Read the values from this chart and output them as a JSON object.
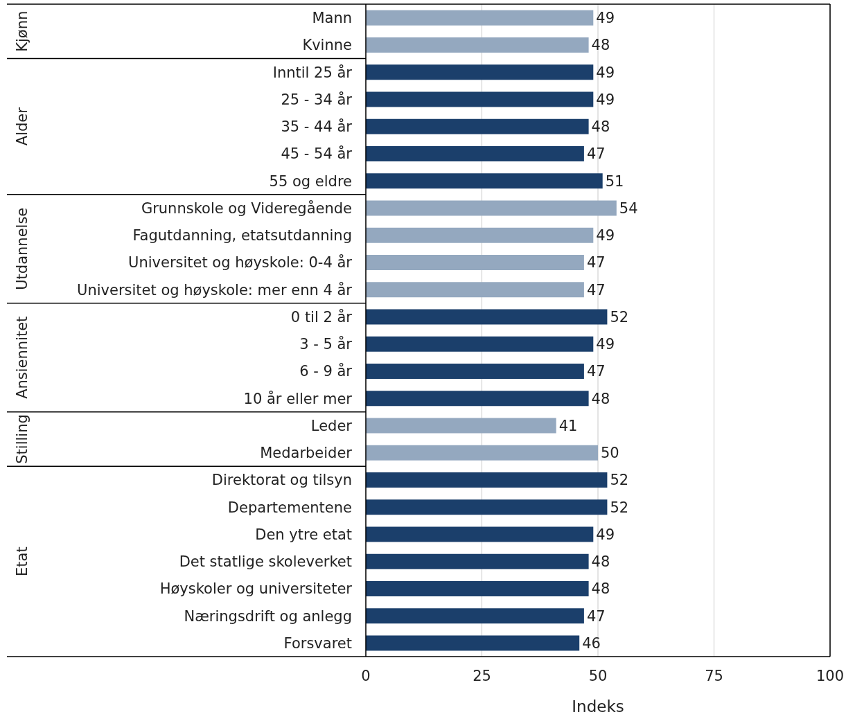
{
  "chart_data": {
    "type": "bar",
    "orientation": "horizontal",
    "xlabel": "Indeks",
    "categories": [
      "Mann",
      "Kvinne",
      "Inntil 25 år",
      "25 - 34 år",
      "35 - 44 år",
      "45 - 54 år",
      "55 og eldre",
      "Grunnskole og Videregående",
      "Fagutdanning, etatsutdanning",
      "Universitet og høyskole: 0-4 år",
      "Universitet og høyskole: mer enn 4 år",
      "0 til 2 år",
      "3 - 5 år",
      "6 - 9 år",
      "10 år eller mer",
      "Leder",
      "Medarbeider",
      "Direktorat og tilsyn",
      "Departementene",
      "Den ytre etat",
      "Det statlige skoleverket",
      "Høyskoler og universiteter",
      "Næringsdrift og anlegg",
      "Forsvaret"
    ],
    "values": [
      49,
      48,
      49,
      49,
      48,
      47,
      51,
      54,
      49,
      47,
      47,
      52,
      49,
      47,
      48,
      41,
      50,
      52,
      52,
      49,
      48,
      48,
      47,
      46
    ],
    "colors": [
      "#94a8bf",
      "#94a8bf",
      "#1b3f6b",
      "#1b3f6b",
      "#1b3f6b",
      "#1b3f6b",
      "#1b3f6b",
      "#94a8bf",
      "#94a8bf",
      "#94a8bf",
      "#94a8bf",
      "#1b3f6b",
      "#1b3f6b",
      "#1b3f6b",
      "#1b3f6b",
      "#94a8bf",
      "#94a8bf",
      "#1b3f6b",
      "#1b3f6b",
      "#1b3f6b",
      "#1b3f6b",
      "#1b3f6b",
      "#1b3f6b",
      "#1b3f6b"
    ],
    "xlim": [
      0,
      100
    ],
    "xticks": [
      0,
      25,
      50,
      75,
      100
    ],
    "grid": "x",
    "data_labels": true,
    "annotations": [
      "Kjønn",
      "Alder",
      "Utdannelse",
      "Ansiennitet",
      "Stilling",
      "Etat"
    ]
  }
}
